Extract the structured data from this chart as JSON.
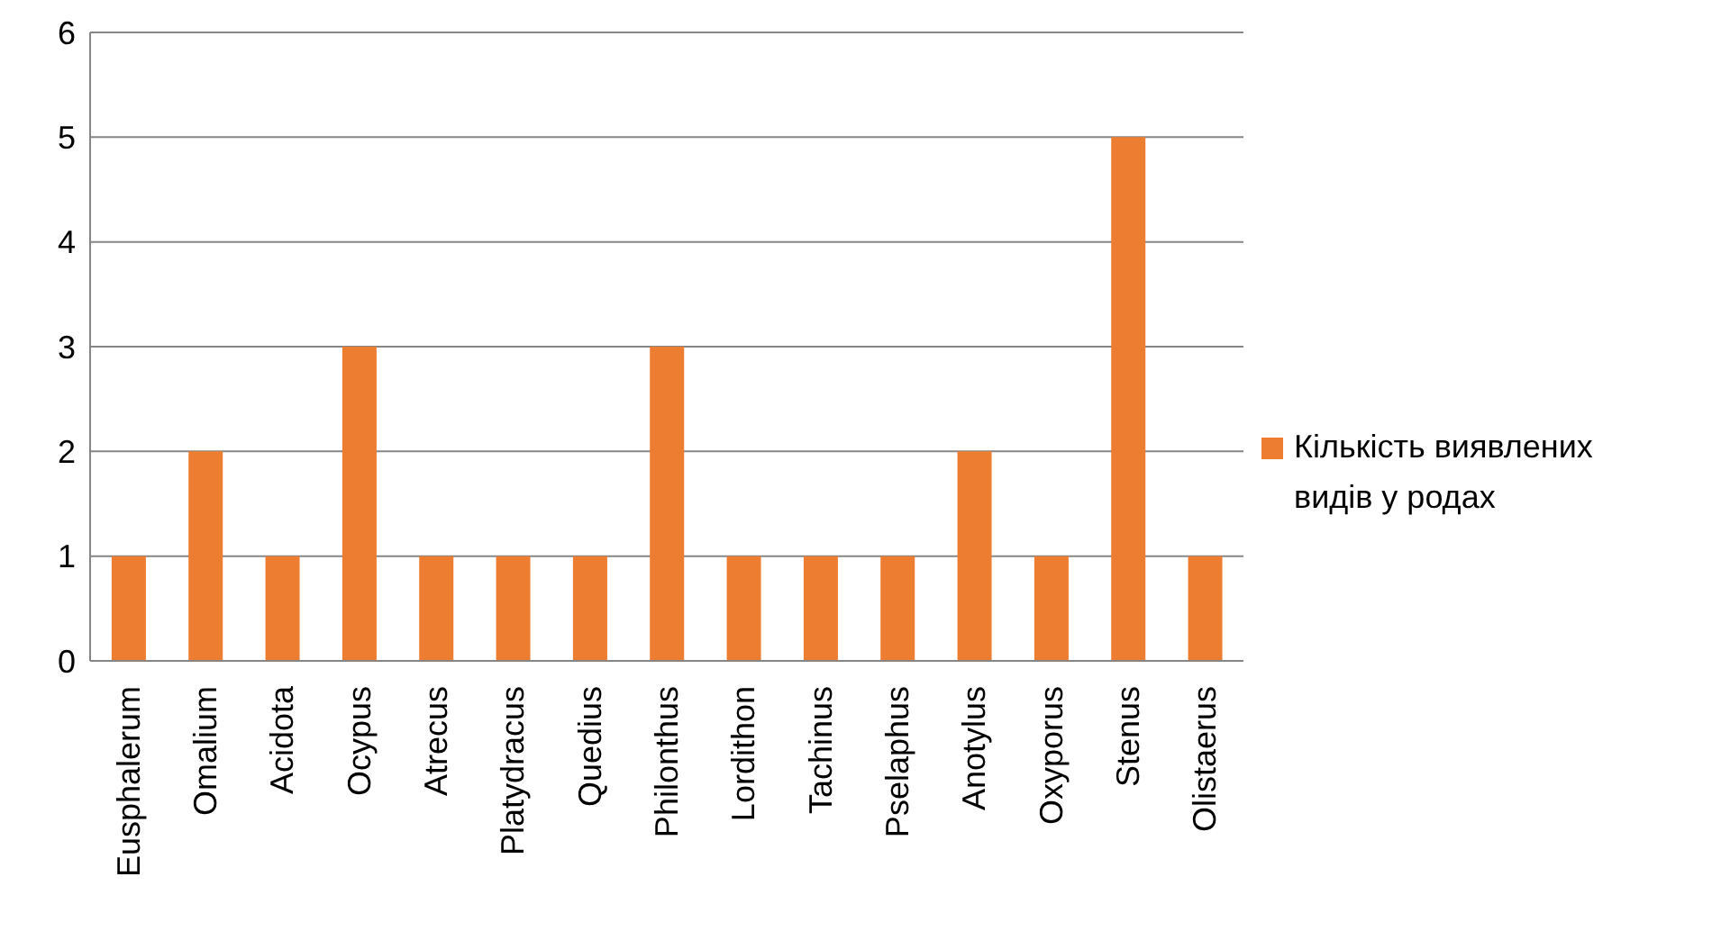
{
  "chart_data": {
    "type": "bar",
    "categories": [
      "Eusphalerum",
      "Omalium",
      "Acidota",
      "Ocypus",
      "Atrecus",
      "Platydracus",
      "Quedius",
      "Philonthus",
      "Lordithon",
      "Tachinus",
      "Pselaphus",
      "Anotylus",
      "Oxyporus",
      "Stenus",
      "Olistaerus"
    ],
    "series": [
      {
        "name": "Кількість виявлених видів у родах",
        "color": "#ed7d31",
        "values": [
          1,
          2,
          1,
          3,
          1,
          1,
          1,
          3,
          1,
          1,
          1,
          2,
          1,
          5,
          1
        ]
      }
    ],
    "ylim": [
      0,
      6
    ],
    "yticks": [
      0,
      1,
      2,
      3,
      4,
      5,
      6
    ],
    "grid": "y",
    "legend": "right"
  }
}
